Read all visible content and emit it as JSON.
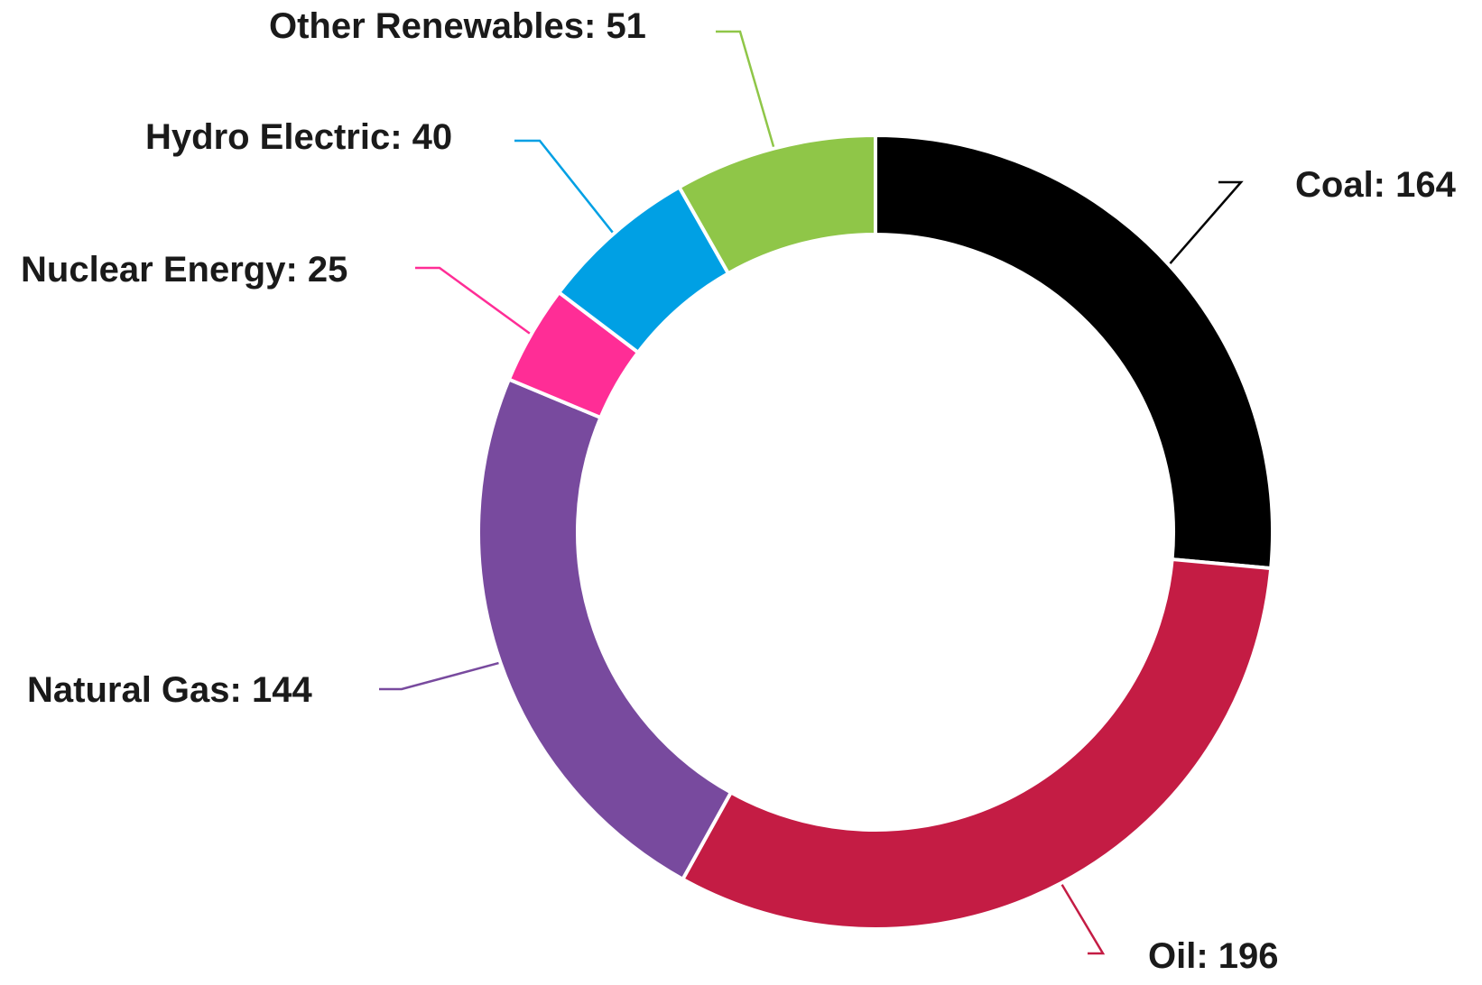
{
  "chart_data": {
    "type": "pie",
    "variant": "donut",
    "title": "",
    "categories": [
      "Coal",
      "Oil",
      "Natural Gas",
      "Nuclear Energy",
      "Hydro Electric",
      "Other Renewables"
    ],
    "values": [
      164,
      196,
      144,
      25,
      40,
      51
    ],
    "colors": [
      "#000000",
      "#c41c44",
      "#784a9e",
      "#ff2d96",
      "#00a0e4",
      "#8fc648"
    ],
    "labels": [
      "Coal: 164",
      "Oil: 196",
      "Natural Gas: 144",
      "Nuclear Energy: 25",
      "Hydro Electric: 40",
      "Other Renewables: 51"
    ],
    "start_angle_deg": 0,
    "direction": "clockwise",
    "legend": "none"
  }
}
